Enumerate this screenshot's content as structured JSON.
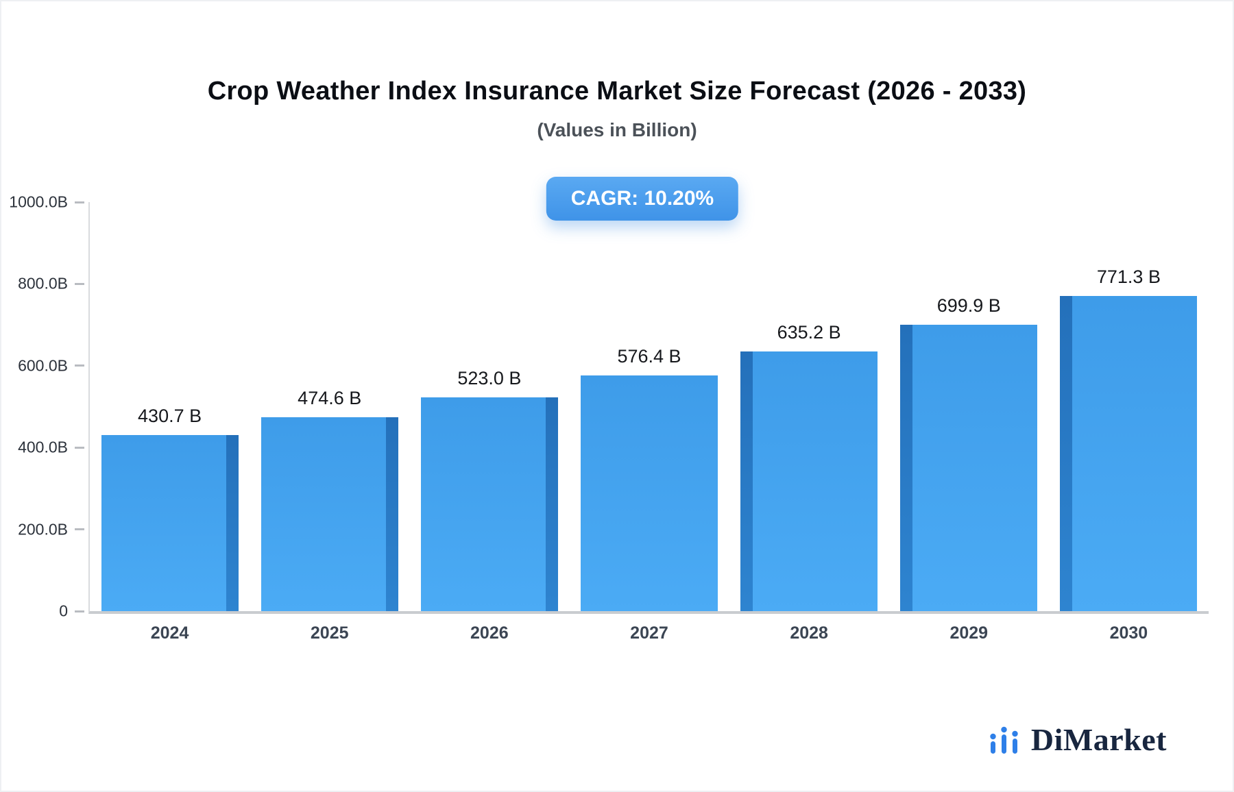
{
  "header": {
    "title": "Crop Weather Index Insurance Market Size Forecast (2026 - 2033)",
    "subtitle": "(Values in Billion)"
  },
  "badge": {
    "label": "CAGR: 10.20%"
  },
  "logo": {
    "text": "DiMarket"
  },
  "chart_data": {
    "type": "bar",
    "title": "Crop Weather Index Insurance Market Size Forecast (2026 - 2033)",
    "subtitle": "(Values in Billion)",
    "unit": "Billion",
    "cagr": "10.20%",
    "categories": [
      "2024",
      "2025",
      "2026",
      "2027",
      "2028",
      "2029",
      "2030"
    ],
    "values": [
      430.7,
      474.6,
      523.0,
      576.4,
      635.2,
      699.9,
      771.3
    ],
    "value_labels": [
      "430.7 B",
      "474.6 B",
      "523.0 B",
      "576.4 B",
      "635.2 B",
      "699.9 B",
      "771.3 B"
    ],
    "ylim": [
      0,
      1000
    ],
    "yticks": [
      {
        "label": "1000.0B",
        "value": 1000
      },
      {
        "label": "800.0B",
        "value": 800
      },
      {
        "label": "600.0B",
        "value": 600
      },
      {
        "label": "400.0B",
        "value": 400
      },
      {
        "label": "200.0B",
        "value": 200
      },
      {
        "label": "0",
        "value": 0
      }
    ],
    "grid": false,
    "legend": false,
    "colors": {
      "bar_front_top": "#3e9ce9",
      "bar_front_bottom": "#4babf5",
      "bar_side_top": "#2470ba",
      "bar_side_bottom": "#2e84d0",
      "badge": "#4a9cf0",
      "logo_blue": "#2e7fe8",
      "logo_navy": "#18263f"
    }
  }
}
